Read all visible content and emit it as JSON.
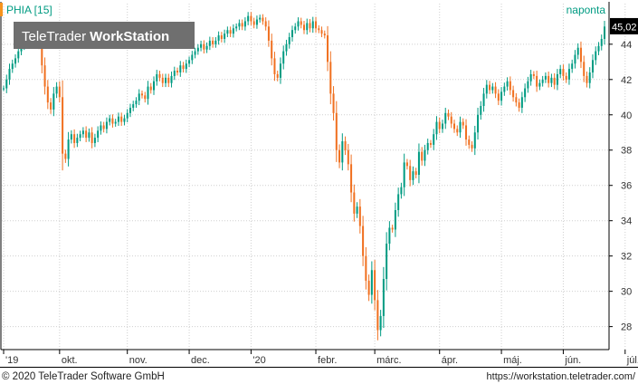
{
  "header": {
    "symbol_label": "PHIA [15]",
    "period_label": "naponta",
    "watermark_light": "TeleTrader",
    "watermark_bold": "WorkStation"
  },
  "footer": {
    "copyright": "© 2020 TeleTrader Software GmbH",
    "url": "https://workstation.teletrader.com/"
  },
  "colors": {
    "up": "#009b82",
    "down": "#f07020",
    "grid": "#cfcfcf",
    "axis": "#000000",
    "price_box": "#000000"
  },
  "chart_data": {
    "type": "candlestick",
    "title": "PHIA [15]",
    "last_price_label": "45,02",
    "last_price": 45.02,
    "ylim": [
      26.8,
      46.3
    ],
    "y_ticks": [
      28,
      30,
      32,
      34,
      36,
      38,
      40,
      42,
      44
    ],
    "y_tick_labels": [
      "28",
      "30",
      "32",
      "34",
      "36",
      "38",
      "40",
      "42",
      "44"
    ],
    "grid": true,
    "x_labels": [
      {
        "label": "'19",
        "index": 0
      },
      {
        "label": "okt.",
        "index": 19
      },
      {
        "label": "nov.",
        "index": 42
      },
      {
        "label": "dec.",
        "index": 63
      },
      {
        "label": "'20",
        "index": 84
      },
      {
        "label": "febr.",
        "index": 106
      },
      {
        "label": "márc.",
        "index": 126
      },
      {
        "label": "ápr.",
        "index": 148
      },
      {
        "label": "máj.",
        "index": 169
      },
      {
        "label": "jún.",
        "index": 190
      },
      {
        "label": "júl.",
        "index": 211
      }
    ],
    "close": [
      41.5,
      42.0,
      42.6,
      42.9,
      43.2,
      43.6,
      43.9,
      44.2,
      44.4,
      44.0,
      44.2,
      44.5,
      44.0,
      42.8,
      41.6,
      40.7,
      40.3,
      41.2,
      41.6,
      41.0,
      37.8,
      37.5,
      38.6,
      38.9,
      38.4,
      38.7,
      38.9,
      39.1,
      38.7,
      39.0,
      38.4,
      38.7,
      39.1,
      39.4,
      39.2,
      39.6,
      39.8,
      39.5,
      39.6,
      39.9,
      39.6,
      39.8,
      40.1,
      40.4,
      40.6,
      40.8,
      41.2,
      41.1,
      40.9,
      41.6,
      41.4,
      41.9,
      42.3,
      42.1,
      41.8,
      42.1,
      41.8,
      42.2,
      42.5,
      42.4,
      42.8,
      42.6,
      42.9,
      43.1,
      43.4,
      43.6,
      43.8,
      44.0,
      43.7,
      43.9,
      44.2,
      44.0,
      44.2,
      44.5,
      44.3,
      44.6,
      44.8,
      44.6,
      44.9,
      45.0,
      45.2,
      45.0,
      45.3,
      45.6,
      45.3,
      45.1,
      45.4,
      45.5,
      45.3,
      45.0,
      44.2,
      43.2,
      42.3,
      42.1,
      42.9,
      43.6,
      44.0,
      44.4,
      44.8,
      45.0,
      45.3,
      45.1,
      44.8,
      45.2,
      44.9,
      45.3,
      44.9,
      44.8,
      44.6,
      44.5,
      43.0,
      41.2,
      40.1,
      38.0,
      37.3,
      38.5,
      38.0,
      37.2,
      35.6,
      34.4,
      34.8,
      33.7,
      32.0,
      30.6,
      29.8,
      31.2,
      29.5,
      27.8,
      28.6,
      30.7,
      32.7,
      33.6,
      33.5,
      34.6,
      35.5,
      35.9,
      37.3,
      37.1,
      36.3,
      36.8,
      36.6,
      37.9,
      37.4,
      38.0,
      38.4,
      38.3,
      38.9,
      39.6,
      39.2,
      39.5,
      40.1,
      39.9,
      39.5,
      39.2,
      39.0,
      39.6,
      39.4,
      38.6,
      38.3,
      38.1,
      39.0,
      40.0,
      40.5,
      41.2,
      41.7,
      41.4,
      41.6,
      41.2,
      40.8,
      41.3,
      41.6,
      41.9,
      41.4,
      41.0,
      40.7,
      40.4,
      41.0,
      41.5,
      41.9,
      42.3,
      42.2,
      41.6,
      41.8,
      42.0,
      42.2,
      41.8,
      42.1,
      41.7,
      42.3,
      42.6,
      42.2,
      42.0,
      42.6,
      42.9,
      43.4,
      43.8,
      43.0,
      42.2,
      41.8,
      42.4,
      43.1,
      43.6,
      43.9,
      44.3,
      45.0
    ],
    "change": [
      0,
      0.5,
      0.6,
      0.3,
      0.3,
      0.4,
      0.3,
      0.3,
      0.2,
      -0.4,
      0.2,
      0.3,
      -0.5,
      -1.2,
      -1.2,
      -0.9,
      -0.4,
      0.9,
      0.4,
      -0.6,
      -3.2,
      -0.3,
      1.1,
      0.3,
      -0.5,
      0.3,
      0.2,
      0.2,
      -0.4,
      0.3,
      -0.6,
      0.3,
      0.4,
      0.3,
      -0.2,
      0.4,
      0.2,
      -0.3,
      0.1,
      0.3,
      -0.3,
      0.2,
      0.3,
      0.3,
      0.2,
      0.2,
      0.4,
      -0.1,
      -0.2,
      0.7,
      -0.2,
      0.5,
      0.4,
      -0.2,
      -0.3,
      0.3,
      -0.3,
      0.4,
      0.3,
      -0.1,
      0.4,
      -0.2,
      0.3,
      0.2,
      0.3,
      0.2,
      0.2,
      0.2,
      -0.3,
      0.2,
      0.3,
      -0.2,
      0.2,
      0.3,
      -0.2,
      0.3,
      0.2,
      -0.2,
      0.3,
      0.1,
      0.2,
      -0.2,
      0.3,
      0.3,
      -0.3,
      -0.2,
      0.3,
      0.1,
      -0.2,
      -0.3,
      -0.8,
      -1.0,
      -0.9,
      -0.2,
      0.8,
      0.7,
      0.4,
      0.4,
      0.4,
      0.2,
      0.3,
      -0.2,
      -0.3,
      0.4,
      -0.3,
      0.4,
      -0.4,
      -0.1,
      -0.2,
      -0.1,
      -1.5,
      -1.8,
      -1.1,
      -2.1,
      -0.7,
      1.2,
      -0.5,
      -0.8,
      -1.6,
      -1.2,
      0.4,
      -1.1,
      -1.7,
      -1.4,
      -0.8,
      1.4,
      -1.7,
      -1.7,
      0.8,
      2.1,
      2.0,
      0.9,
      -0.1,
      1.1,
      0.9,
      0.4,
      1.4,
      -0.2,
      -0.8,
      0.5,
      -0.2,
      1.3,
      -0.5,
      0.6,
      0.4,
      -0.1,
      0.6,
      0.7,
      -0.4,
      0.3,
      0.6,
      -0.2,
      -0.4,
      -0.3,
      -0.2,
      0.6,
      -0.2,
      -0.8,
      -0.3,
      -0.2,
      0.9,
      1.0,
      0.5,
      0.7,
      0.5,
      -0.3,
      0.2,
      -0.4,
      -0.4,
      0.5,
      0.3,
      0.3,
      -0.5,
      -0.4,
      -0.3,
      -0.3,
      0.6,
      0.5,
      0.4,
      0.4,
      -0.1,
      -0.6,
      0.2,
      0.2,
      0.2,
      -0.4,
      0.3,
      -0.4,
      0.6,
      0.3,
      -0.4,
      -0.2,
      0.6,
      0.3,
      0.5,
      0.4,
      -0.8,
      -0.8,
      -0.4,
      0.6,
      0.7,
      0.5,
      0.3,
      0.4,
      0.7
    ]
  }
}
